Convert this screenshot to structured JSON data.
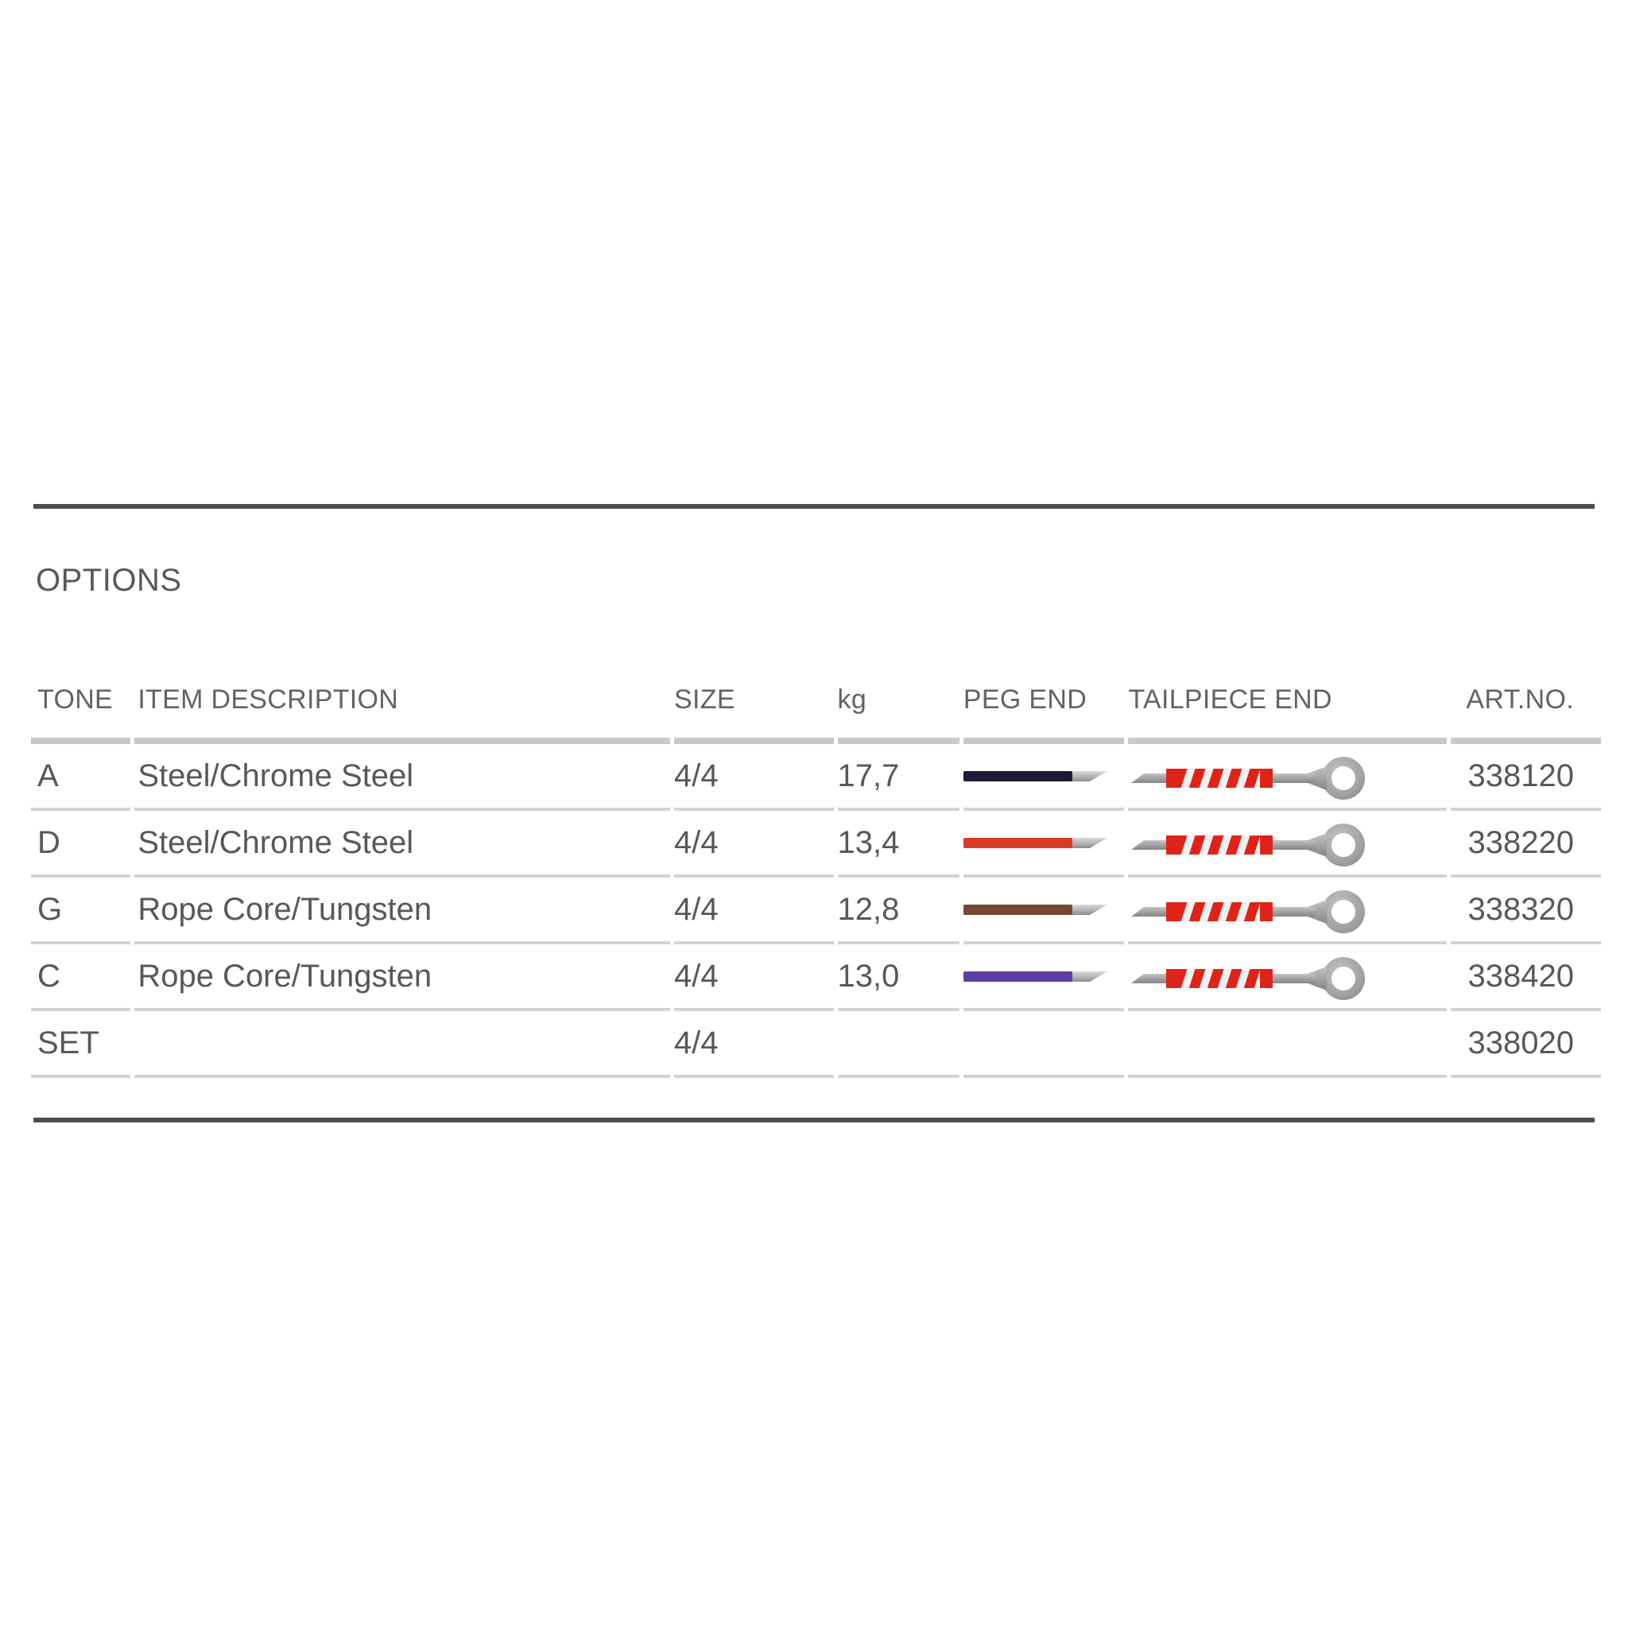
{
  "section": {
    "heading": "OPTIONS"
  },
  "table": {
    "headers": {
      "tone": "TONE",
      "item": "ITEM DESCRIPTION",
      "size": "SIZE",
      "kg": "kg",
      "peg": "PEG END",
      "tail": "TAILPIECE END",
      "art": "ART.NO."
    },
    "rows": [
      {
        "tone": "A",
        "item": "Steel/Chrome Steel",
        "size": "4/4",
        "kg": "17,7",
        "peg_color": "#1b1b38",
        "has_icons": true,
        "art": "338120"
      },
      {
        "tone": "D",
        "item": "Steel/Chrome Steel",
        "size": "4/4",
        "kg": "13,4",
        "peg_color": "#d93b27",
        "has_icons": true,
        "art": "338220"
      },
      {
        "tone": "G",
        "item": "Rope Core/Tungsten",
        "size": "4/4",
        "kg": "12,8",
        "peg_color": "#7a4432",
        "has_icons": true,
        "art": "338320"
      },
      {
        "tone": "C",
        "item": "Rope Core/Tungsten",
        "size": "4/4",
        "kg": "13,0",
        "peg_color": "#5e3ca4",
        "has_icons": true,
        "art": "338420"
      },
      {
        "tone": "SET",
        "item": "",
        "size": "4/4",
        "kg": "",
        "peg_color": null,
        "has_icons": false,
        "art": "338020"
      }
    ],
    "icon_colors": {
      "winding_red": "#e02318",
      "winding_stripe": "#f0f0f0",
      "rod_gray": "#9a9a9a",
      "ring_gray": "#a6a6a6"
    }
  }
}
